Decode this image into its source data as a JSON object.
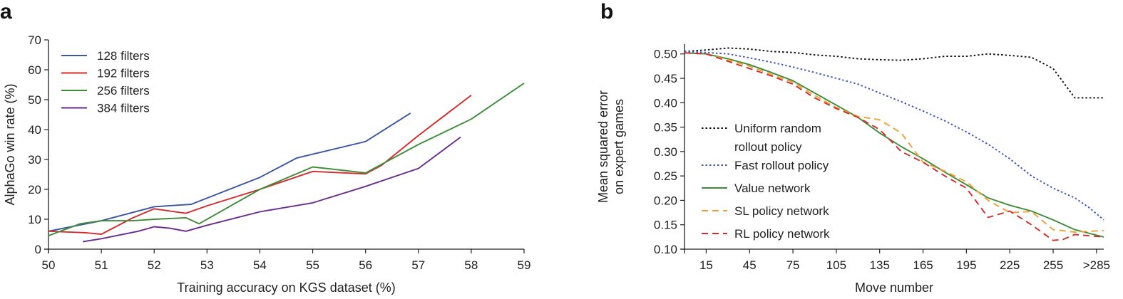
{
  "chart_data": [
    {
      "panel": "a",
      "type": "line",
      "title": "",
      "xlabel": "Training accuracy on KGS dataset (%)",
      "ylabel": "AlphaGo win rate (%)",
      "xlim": [
        50,
        59
      ],
      "ylim": [
        0,
        70
      ],
      "xticks": [
        50,
        51,
        52,
        53,
        54,
        55,
        56,
        57,
        58,
        59
      ],
      "yticks": [
        0,
        10,
        20,
        30,
        40,
        50,
        60,
        70
      ],
      "legend_position": "top-left",
      "grid": false,
      "series": [
        {
          "name": "128 filters",
          "color": "#3a55a4",
          "dash": "solid",
          "x": [
            50.0,
            51.0,
            52.0,
            52.7,
            54.0,
            54.7,
            56.0,
            56.85
          ],
          "y": [
            6,
            9.5,
            14.2,
            15,
            24,
            30.5,
            36,
            45.5
          ]
        },
        {
          "name": "192 filters",
          "color": "#d62a2a",
          "dash": "solid",
          "x": [
            50.0,
            50.7,
            51.0,
            51.6,
            52.0,
            52.6,
            53.0,
            54.0,
            55.0,
            56.0,
            56.3,
            57.0,
            58.0
          ],
          "y": [
            6,
            5.5,
            5,
            10.5,
            13.5,
            12,
            14.5,
            20,
            26,
            25.2,
            28,
            38,
            51.5
          ]
        },
        {
          "name": "256 filters",
          "color": "#3f8c3a",
          "dash": "solid",
          "x": [
            50.0,
            50.6,
            51.0,
            51.6,
            52.0,
            52.6,
            52.85,
            54.0,
            55.0,
            56.0,
            57.0,
            58.0,
            59.0
          ],
          "y": [
            4.5,
            8.5,
            9.5,
            9.5,
            10,
            10.5,
            8.5,
            20,
            27.5,
            25.5,
            35,
            43.5,
            55.5
          ]
        },
        {
          "name": "384 filters",
          "color": "#6a2c8c",
          "dash": "solid",
          "x": [
            50.65,
            51.0,
            51.7,
            52.0,
            52.3,
            52.6,
            53.0,
            54.0,
            55.0,
            56.0,
            57.0,
            57.8
          ],
          "y": [
            2.5,
            3.5,
            6,
            7.5,
            7,
            6,
            8,
            12.5,
            15.5,
            21,
            27,
            37.5
          ]
        }
      ]
    },
    {
      "panel": "b",
      "type": "line",
      "title": "",
      "xlabel": "Move number",
      "ylabel": "Mean squared error on expert games",
      "ylabel_lines": [
        "Mean squared error",
        "on expert games"
      ],
      "xlim": [
        0,
        290
      ],
      "ylim": [
        0.1,
        0.52
      ],
      "xticks": [
        15,
        45,
        75,
        105,
        135,
        165,
        195,
        225,
        255,
        285
      ],
      "xtick_labels": [
        "15",
        "45",
        "75",
        "105",
        "135",
        "165",
        "195",
        "225",
        "255",
        ">285"
      ],
      "yticks": [
        0.1,
        0.15,
        0.2,
        0.25,
        0.3,
        0.35,
        0.4,
        0.45,
        0.5
      ],
      "ytick_labels": [
        "0.10",
        "0.15",
        "0.20",
        "0.25",
        "0.30",
        "0.35",
        "0.40",
        "0.45",
        "0.50"
      ],
      "legend_position": "left-center",
      "grid": false,
      "series": [
        {
          "name": "Uniform random rollout policy",
          "name_lines": [
            "Uniform random",
            "rollout policy"
          ],
          "color": "#111111",
          "dash": "dotted",
          "x": [
            0,
            15,
            30,
            45,
            60,
            75,
            90,
            105,
            120,
            135,
            150,
            165,
            180,
            195,
            210,
            225,
            240,
            255,
            262,
            270,
            280,
            290
          ],
          "y": [
            0.505,
            0.508,
            0.512,
            0.51,
            0.505,
            0.503,
            0.498,
            0.495,
            0.49,
            0.488,
            0.487,
            0.49,
            0.495,
            0.495,
            0.5,
            0.497,
            0.493,
            0.47,
            0.442,
            0.41,
            0.41,
            0.41
          ]
        },
        {
          "name": "Fast rollout policy",
          "color": "#3b55bf",
          "dash": "dotted",
          "x": [
            0,
            15,
            30,
            45,
            60,
            75,
            90,
            105,
            120,
            135,
            150,
            165,
            180,
            195,
            210,
            225,
            240,
            255,
            270,
            280,
            290
          ],
          "y": [
            0.505,
            0.503,
            0.5,
            0.492,
            0.483,
            0.473,
            0.462,
            0.45,
            0.438,
            0.42,
            0.402,
            0.383,
            0.363,
            0.34,
            0.315,
            0.285,
            0.25,
            0.225,
            0.205,
            0.185,
            0.16
          ]
        },
        {
          "name": "Value network",
          "color": "#3f8c3a",
          "dash": "solid",
          "x": [
            0,
            15,
            30,
            45,
            60,
            75,
            90,
            105,
            120,
            135,
            150,
            165,
            180,
            195,
            210,
            225,
            240,
            255,
            270,
            290
          ],
          "y": [
            0.502,
            0.5,
            0.49,
            0.478,
            0.462,
            0.445,
            0.42,
            0.395,
            0.37,
            0.338,
            0.31,
            0.285,
            0.258,
            0.232,
            0.205,
            0.19,
            0.178,
            0.16,
            0.14,
            0.125
          ]
        },
        {
          "name": "SL policy network",
          "color": "#f0a030",
          "dash": "dashed",
          "x": [
            0,
            15,
            30,
            45,
            60,
            75,
            90,
            105,
            120,
            135,
            150,
            165,
            180,
            195,
            210,
            225,
            240,
            255,
            270,
            290
          ],
          "y": [
            0.502,
            0.5,
            0.488,
            0.475,
            0.458,
            0.442,
            0.415,
            0.39,
            0.372,
            0.365,
            0.338,
            0.278,
            0.26,
            0.238,
            0.2,
            0.175,
            0.177,
            0.14,
            0.135,
            0.138
          ]
        },
        {
          "name": "RL policy network",
          "color": "#d62a2a",
          "dash": "dashed",
          "x": [
            0,
            15,
            30,
            45,
            60,
            75,
            90,
            105,
            120,
            135,
            150,
            165,
            180,
            195,
            210,
            225,
            240,
            255,
            262,
            270,
            290
          ],
          "y": [
            0.502,
            0.5,
            0.485,
            0.47,
            0.455,
            0.438,
            0.41,
            0.388,
            0.37,
            0.345,
            0.3,
            0.278,
            0.25,
            0.225,
            0.165,
            0.178,
            0.15,
            0.118,
            0.12,
            0.13,
            0.125
          ]
        }
      ]
    }
  ]
}
